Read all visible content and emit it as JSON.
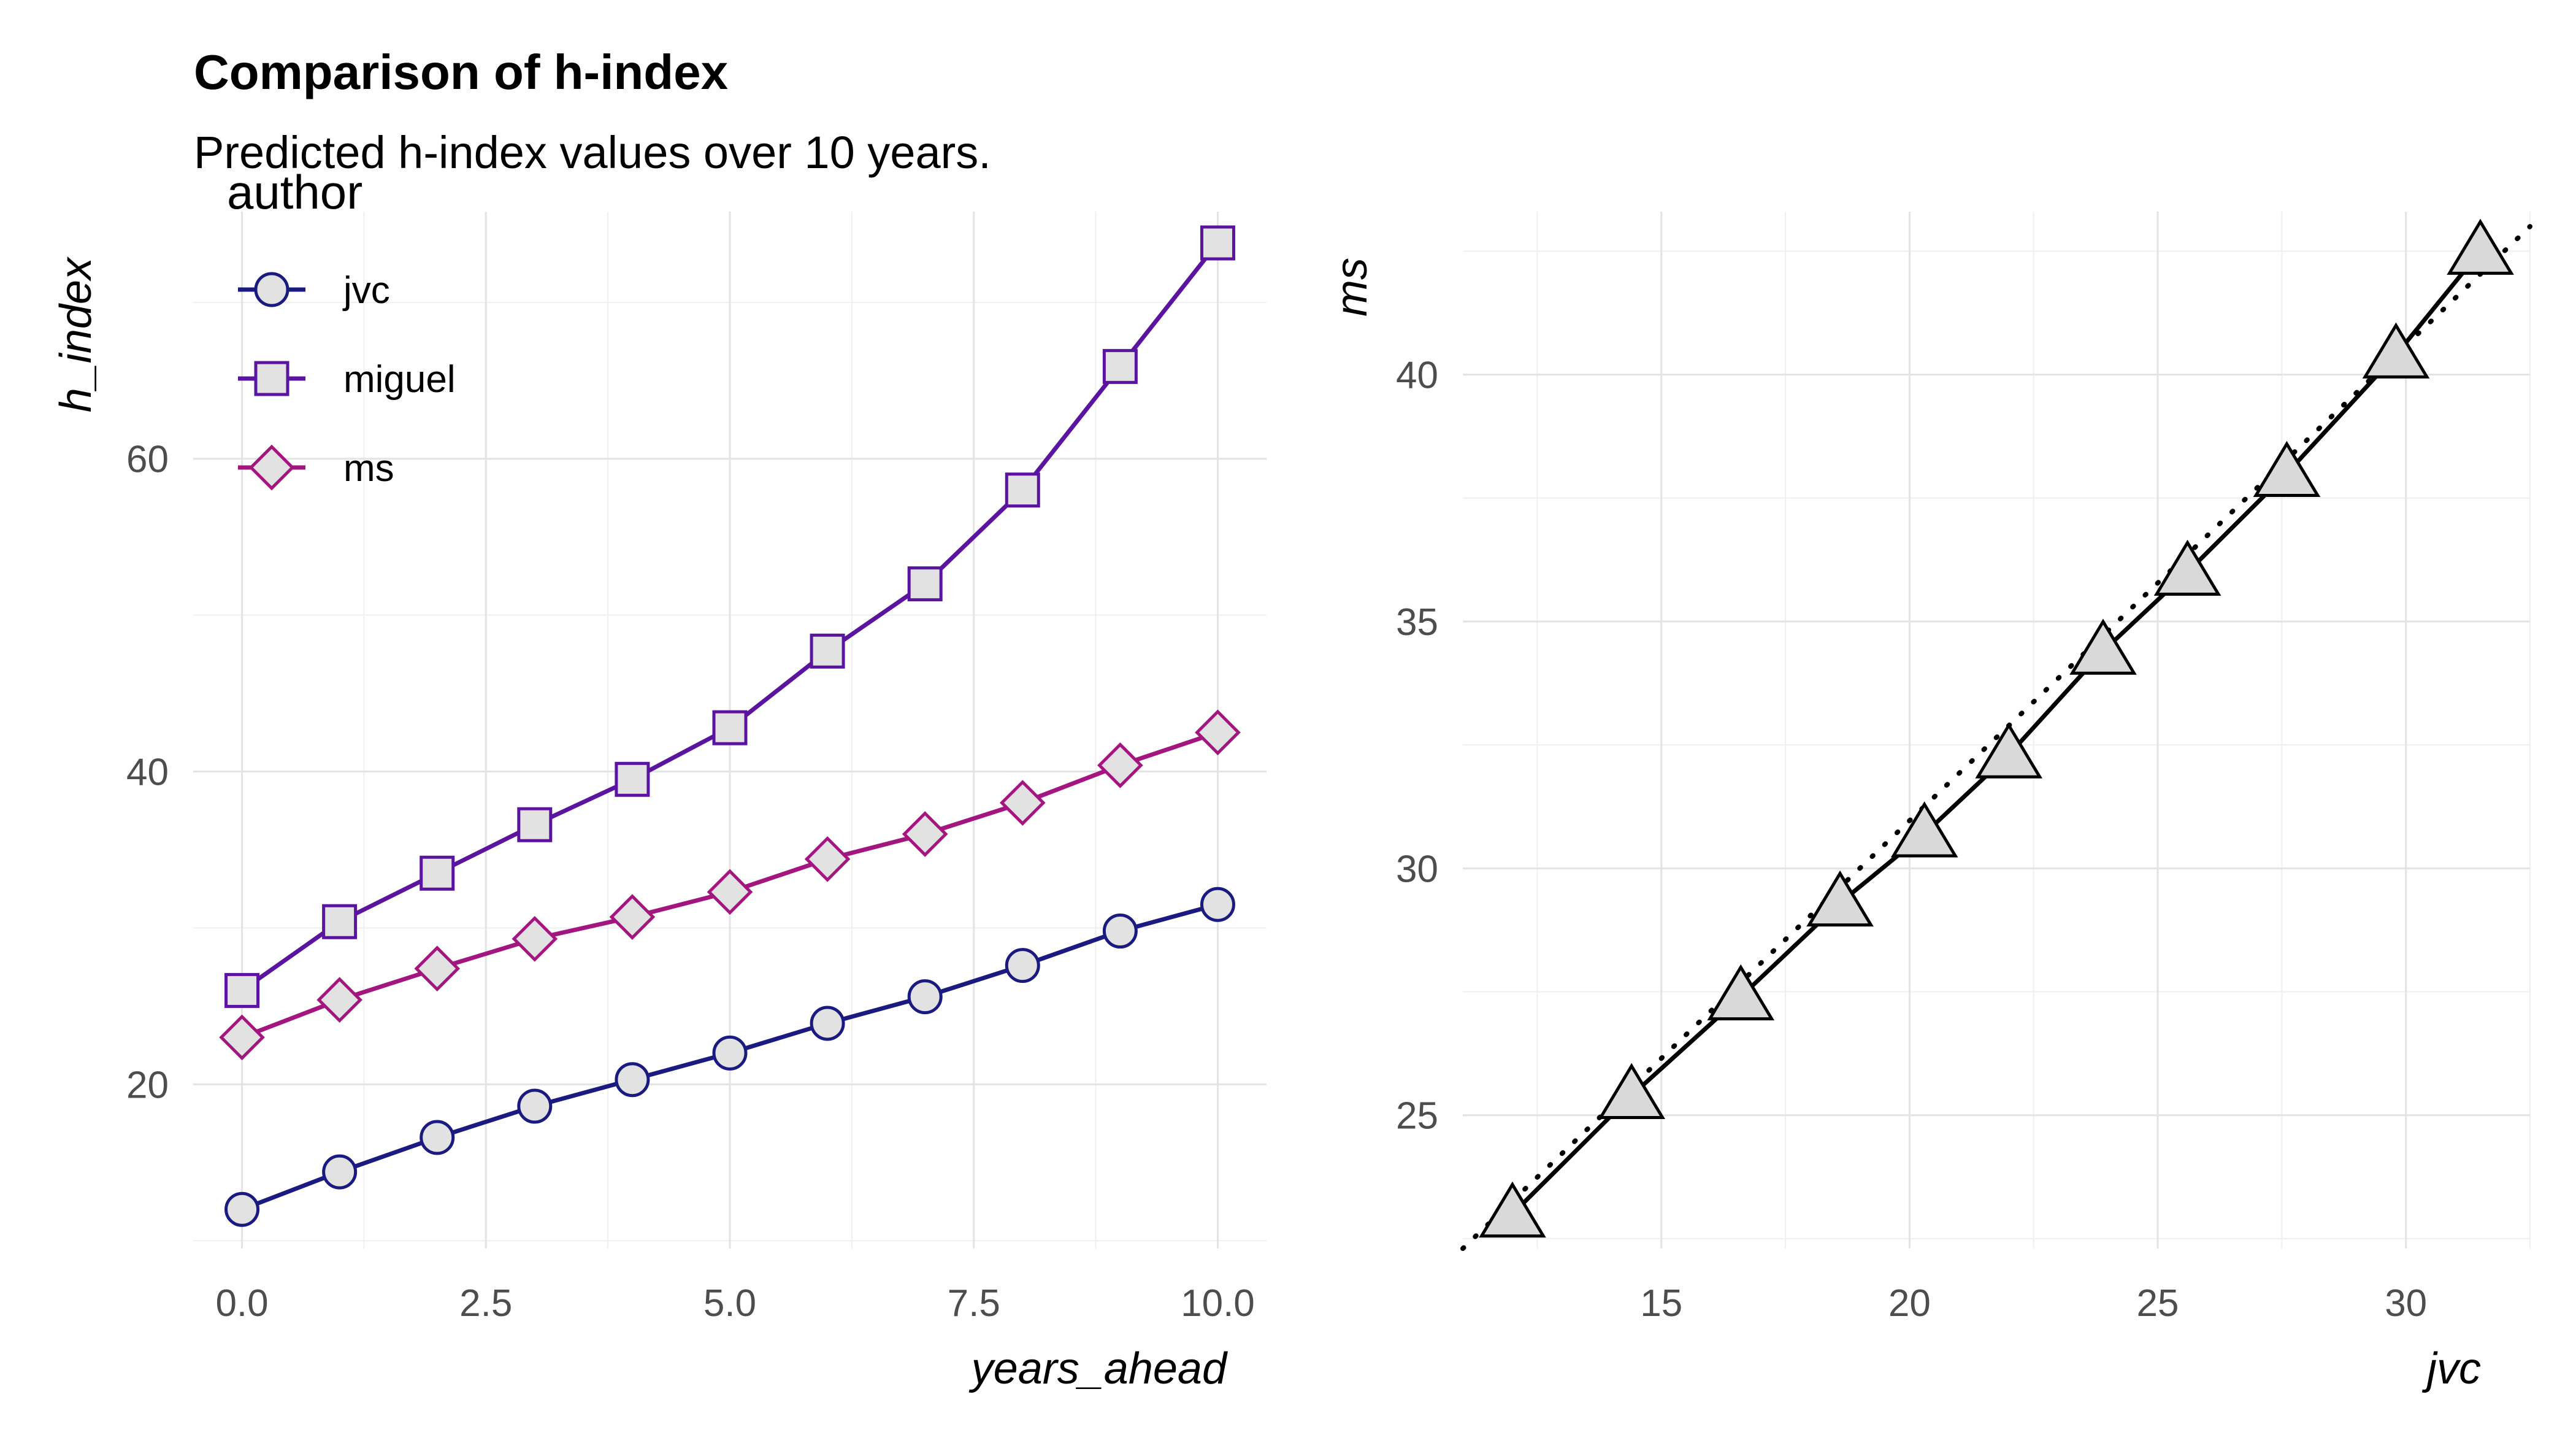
{
  "title": "Comparison of h-index",
  "subtitle": "Predicted h-index values over 10 years.",
  "chart_data": [
    {
      "type": "line",
      "xlabel": "years_ahead",
      "ylabel": "h_index",
      "xlim": [
        -0.5,
        10.5
      ],
      "ylim": [
        9.5,
        75.8
      ],
      "x_ticks": [
        0,
        2.5,
        5,
        7.5,
        10
      ],
      "x_tick_labels": [
        "0.0",
        "2.5",
        "5.0",
        "7.5",
        "10.0"
      ],
      "y_ticks": [
        20,
        40,
        60
      ],
      "y_tick_labels": [
        "20",
        "40",
        "60"
      ],
      "grid": true,
      "legend_title": "author",
      "legend_position": "top-left",
      "x": [
        0,
        1,
        2,
        3,
        4,
        5,
        6,
        7,
        8,
        9,
        10
      ],
      "series": [
        {
          "name": "jvc",
          "color": "#1a1a80",
          "marker": "circle",
          "values": [
            12.0,
            14.4,
            16.6,
            18.6,
            20.3,
            22.0,
            23.9,
            25.6,
            27.6,
            29.8,
            31.5
          ]
        },
        {
          "name": "miguel",
          "color": "#5a14a0",
          "marker": "square",
          "values": [
            26.0,
            30.4,
            33.5,
            36.6,
            39.5,
            42.8,
            47.7,
            52.0,
            58.0,
            65.9,
            73.8
          ]
        },
        {
          "name": "ms",
          "color": "#a3167f",
          "marker": "diamond",
          "values": [
            23.0,
            25.4,
            27.4,
            29.3,
            30.7,
            32.3,
            34.4,
            36.0,
            38.0,
            40.4,
            42.5
          ]
        }
      ]
    },
    {
      "type": "scatter",
      "xlabel": "jvc",
      "ylabel": "ms",
      "xlim": [
        11.0,
        32.5
      ],
      "ylim": [
        22.3,
        43.3
      ],
      "x_ticks": [
        15,
        20,
        25,
        30
      ],
      "x_tick_labels": [
        "15",
        "20",
        "25",
        "30"
      ],
      "y_ticks": [
        25,
        30,
        35,
        40
      ],
      "y_tick_labels": [
        "25",
        "30",
        "35",
        "40"
      ],
      "grid": true,
      "marker": "triangle",
      "line_style": "solid",
      "reference_line": {
        "style": "dotted",
        "x": [
          11.0,
          32.5
        ],
        "y": [
          22.3,
          43.0
        ]
      },
      "x": [
        12.0,
        14.4,
        16.6,
        18.6,
        20.3,
        22.0,
        23.9,
        25.6,
        27.6,
        29.8,
        31.5
      ],
      "y": [
        23.0,
        25.4,
        27.4,
        29.3,
        30.7,
        32.3,
        34.4,
        36.0,
        38.0,
        40.4,
        42.5
      ]
    }
  ]
}
